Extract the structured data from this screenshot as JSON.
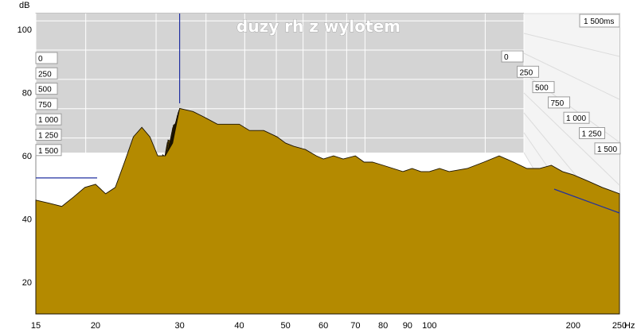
{
  "chart_data": {
    "type": "waterfall",
    "title": "duzy rh z wylotem",
    "ylabel": "dB",
    "xunit": "Hz",
    "x_scale": "log",
    "xlim": [
      15,
      250
    ],
    "ylim": [
      10,
      105
    ],
    "x_ticks": [
      "15",
      "20",
      "30",
      "40",
      "50",
      "60",
      "70",
      "80",
      "90",
      "100",
      "200",
      "250"
    ],
    "x_tick_values": [
      15,
      20,
      30,
      40,
      50,
      60,
      70,
      80,
      90,
      100,
      200,
      250
    ],
    "y_ticks": [
      "20",
      "40",
      "60",
      "80",
      "100"
    ],
    "y_tick_values": [
      20,
      40,
      60,
      80,
      100
    ],
    "time_max_label": "1 500ms",
    "time_labels_left": [
      "0",
      "250",
      "500",
      "750",
      "1 000",
      "1 250",
      "1 500"
    ],
    "time_labels_right": [
      "0",
      "250",
      "500",
      "750",
      "1 000",
      "1 250",
      "1 500"
    ],
    "fill_color": "#b48a00",
    "back_wall_color": "#d4d4d4",
    "grid": true,
    "slice_count": 30,
    "front_slice": {
      "freq": [
        15,
        16,
        17,
        18,
        19,
        20,
        21,
        22,
        23,
        24,
        25,
        26,
        27,
        28,
        29,
        30,
        32,
        34,
        36,
        38,
        40,
        42,
        45,
        48,
        50,
        52,
        55,
        58,
        60,
        63,
        66,
        70,
        73,
        76,
        80,
        84,
        88,
        92,
        96,
        100,
        105,
        110,
        120,
        130,
        140,
        150,
        160,
        170,
        180,
        190,
        200,
        215,
        230,
        250
      ],
      "db": [
        46,
        45,
        44,
        47,
        50,
        51,
        48,
        50,
        58,
        66,
        69,
        66,
        60,
        60,
        64,
        75,
        74,
        72,
        70,
        70,
        70,
        68,
        68,
        66,
        64,
        63,
        62,
        60,
        59,
        60,
        59,
        60,
        58,
        58,
        57,
        56,
        55,
        56,
        55,
        55,
        56,
        55,
        56,
        58,
        60,
        58,
        56,
        56,
        57,
        55,
        54,
        52,
        50,
        48
      ]
    },
    "markers": [
      {
        "type": "vertical",
        "x": 30
      },
      {
        "type": "horizontal",
        "y": 53
      }
    ]
  }
}
